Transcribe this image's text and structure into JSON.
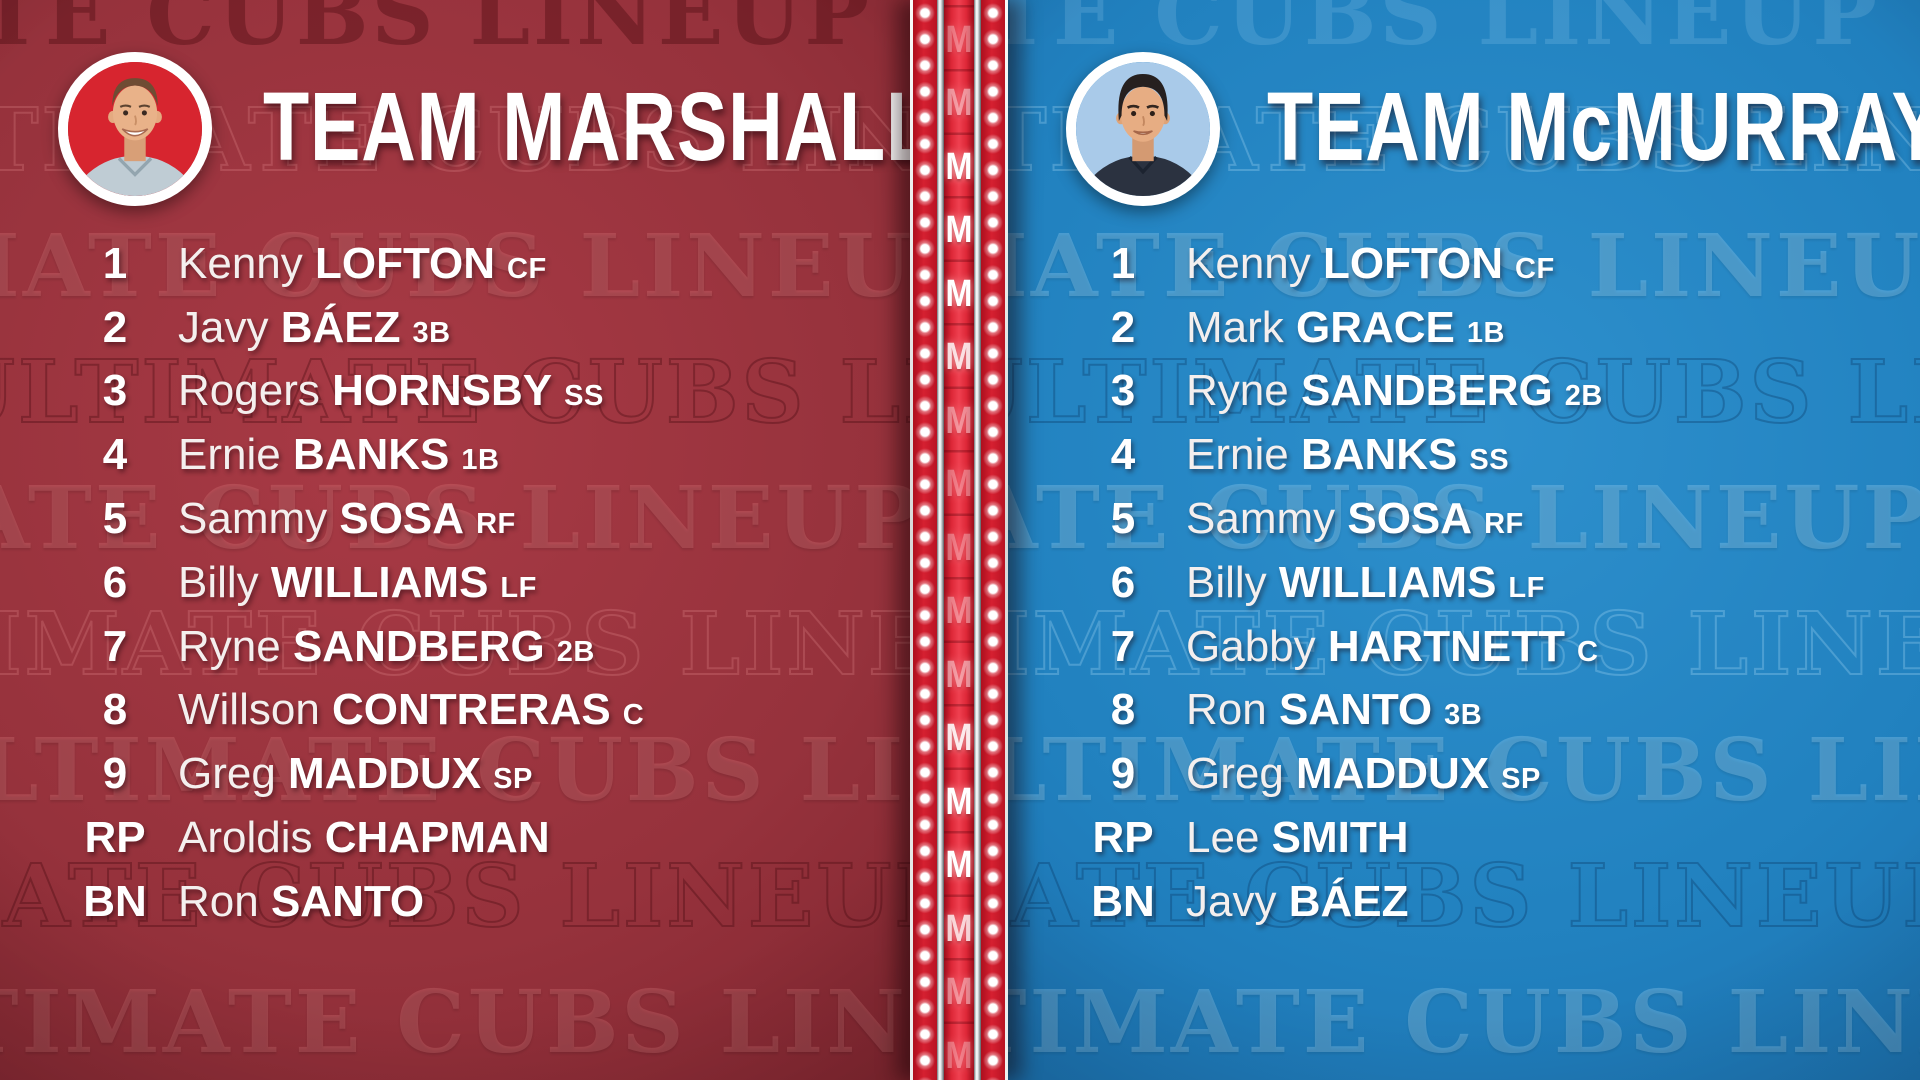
{
  "watermark": {
    "text": "ULTIMATE CUBS LINEUP",
    "separator": "•",
    "repeats": 3
  },
  "divider": {
    "letter": "M",
    "letter_count": 17,
    "letter_opacities": [
      0.35,
      0.5,
      1,
      1,
      1,
      0.85,
      0.45,
      0.35,
      0.35,
      0.4,
      0.5,
      0.9,
      1,
      1,
      0.8,
      0.45,
      0.35
    ]
  },
  "teams": [
    {
      "name": "TEAM MARSHALL",
      "panel_color": "#93303a",
      "avatar_bg": "#d7252f",
      "lineup": [
        {
          "slot": "1",
          "first": "Kenny",
          "last": "LOFTON",
          "pos": "CF"
        },
        {
          "slot": "2",
          "first": "Javy",
          "last": "BÁEZ",
          "pos": "3B"
        },
        {
          "slot": "3",
          "first": "Rogers",
          "last": "HORNSBY",
          "pos": "SS"
        },
        {
          "slot": "4",
          "first": "Ernie",
          "last": "BANKS",
          "pos": "1B"
        },
        {
          "slot": "5",
          "first": "Sammy",
          "last": "SOSA",
          "pos": "RF"
        },
        {
          "slot": "6",
          "first": "Billy",
          "last": "WILLIAMS",
          "pos": "LF"
        },
        {
          "slot": "7",
          "first": "Ryne",
          "last": "SANDBERG",
          "pos": "2B"
        },
        {
          "slot": "8",
          "first": "Willson",
          "last": "CONTRERAS",
          "pos": "C"
        },
        {
          "slot": "9",
          "first": "Greg",
          "last": "MADDUX",
          "pos": "SP"
        },
        {
          "slot": "RP",
          "first": "Aroldis",
          "last": "CHAPMAN",
          "pos": ""
        },
        {
          "slot": "BN",
          "first": "Ron",
          "last": "SANTO",
          "pos": ""
        }
      ]
    },
    {
      "name": "TEAM McMURRAY",
      "panel_color": "#1f7fbd",
      "avatar_bg": "#a9cae9",
      "lineup": [
        {
          "slot": "1",
          "first": "Kenny",
          "last": "LOFTON",
          "pos": "CF"
        },
        {
          "slot": "2",
          "first": "Mark",
          "last": "GRACE",
          "pos": "1B"
        },
        {
          "slot": "3",
          "first": "Ryne",
          "last": "SANDBERG",
          "pos": "2B"
        },
        {
          "slot": "4",
          "first": "Ernie",
          "last": "BANKS",
          "pos": "SS"
        },
        {
          "slot": "5",
          "first": "Sammy",
          "last": "SOSA",
          "pos": "RF"
        },
        {
          "slot": "6",
          "first": "Billy",
          "last": "WILLIAMS",
          "pos": "LF"
        },
        {
          "slot": "7",
          "first": "Gabby",
          "last": "HARTNETT",
          "pos": "C"
        },
        {
          "slot": "8",
          "first": "Ron",
          "last": "SANTO",
          "pos": "3B"
        },
        {
          "slot": "9",
          "first": "Greg",
          "last": "MADDUX",
          "pos": "SP"
        },
        {
          "slot": "RP",
          "first": "Lee",
          "last": "SMITH",
          "pos": ""
        },
        {
          "slot": "BN",
          "first": "Javy",
          "last": "BÁEZ",
          "pos": ""
        }
      ]
    }
  ],
  "colors": {
    "white": "#ffffff",
    "marquee_red": "#d62031",
    "rail_silver": "#e6e9ea",
    "dot_white": "#ffffff",
    "red_panel": "#93303a",
    "blue_panel": "#1f7fbd"
  }
}
